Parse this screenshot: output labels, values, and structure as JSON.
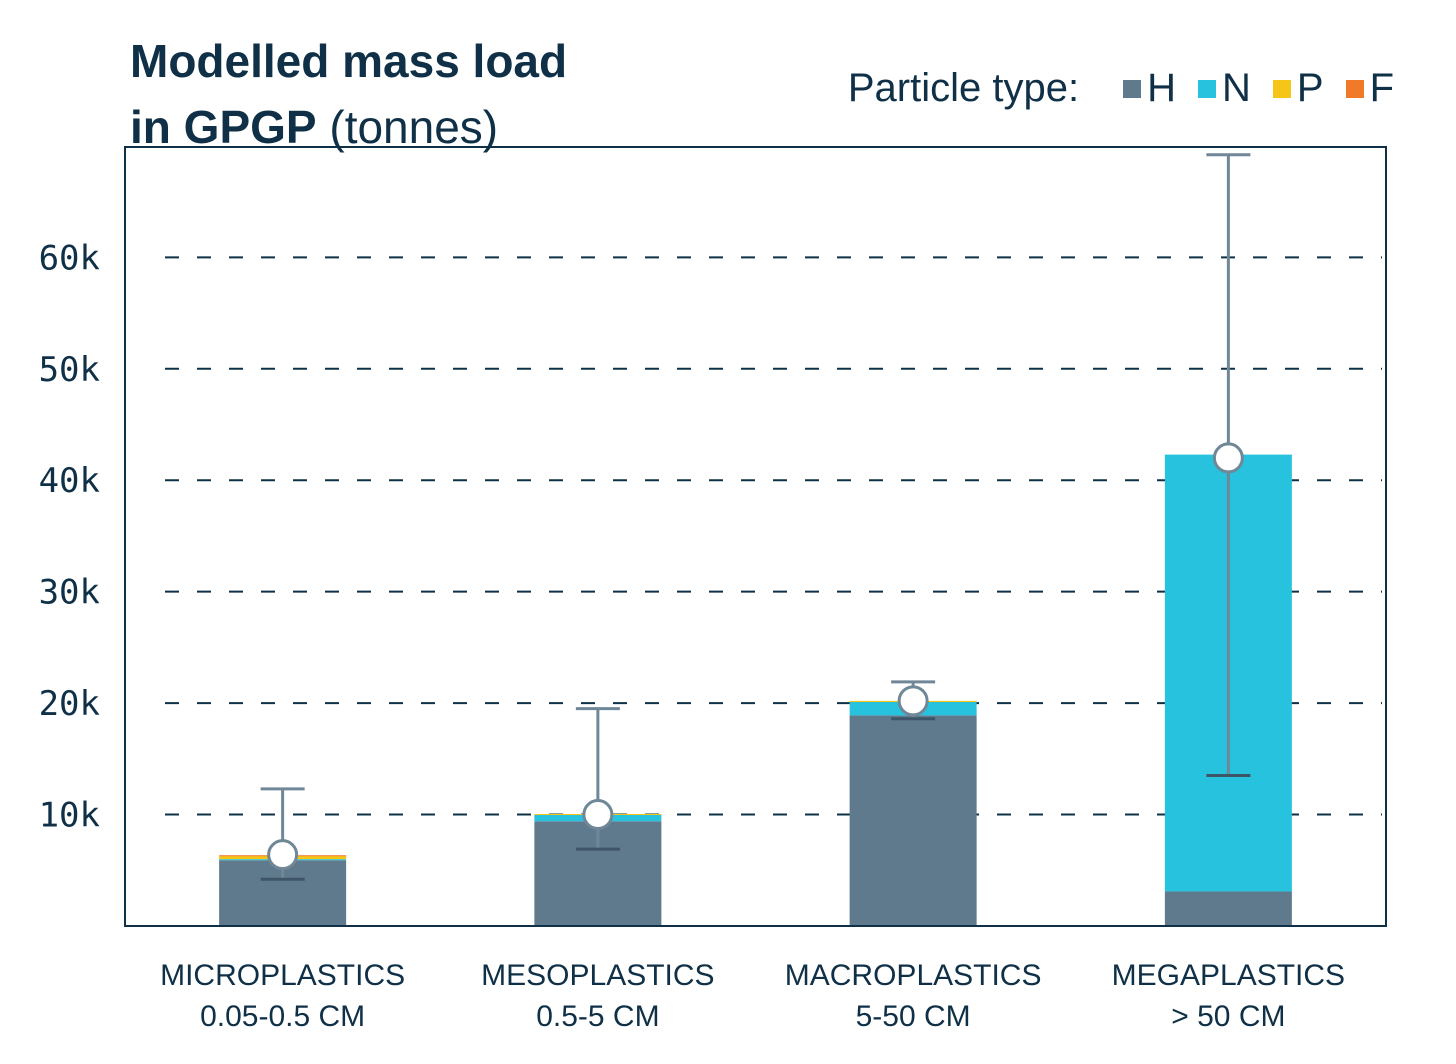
{
  "chart_data": {
    "type": "bar",
    "stacked": true,
    "title_bold_line1": "Modelled mass load",
    "title_bold_line2": "in GPGP",
    "title_unit": "(tonnes)",
    "legend_label": "Particle type:",
    "categories": [
      [
        "MICROPLASTICS",
        "0.05-0.5 CM"
      ],
      [
        "MESOPLASTICS",
        "0.5-5 CM"
      ],
      [
        "MACROPLASTICS",
        "5-50 CM"
      ],
      [
        "MEGAPLASTICS",
        "> 50 CM"
      ]
    ],
    "series": [
      {
        "name": "H",
        "color": "#5f7a8c",
        "values": [
          5900,
          9400,
          18900,
          3100
        ]
      },
      {
        "name": "N",
        "color": "#27c2dd",
        "values": [
          100,
          600,
          1200,
          39200
        ]
      },
      {
        "name": "P",
        "color": "#f5c518",
        "values": [
          300,
          50,
          100,
          0
        ]
      },
      {
        "name": "F",
        "color": "#f07a2a",
        "values": [
          50,
          0,
          0,
          0
        ]
      }
    ],
    "totals": [
      6400,
      10000,
      20200,
      42000
    ],
    "error_low": [
      4200,
      6900,
      18600,
      13500
    ],
    "error_high": [
      12300,
      19500,
      21900,
      69200
    ],
    "yticks": [
      "10k",
      "20k",
      "30k",
      "40k",
      "50k",
      "60k"
    ],
    "ytick_values": [
      10000,
      20000,
      30000,
      40000,
      50000,
      60000
    ],
    "ylim": [
      0,
      69900
    ],
    "grid": true,
    "legend_position": "top-right"
  }
}
